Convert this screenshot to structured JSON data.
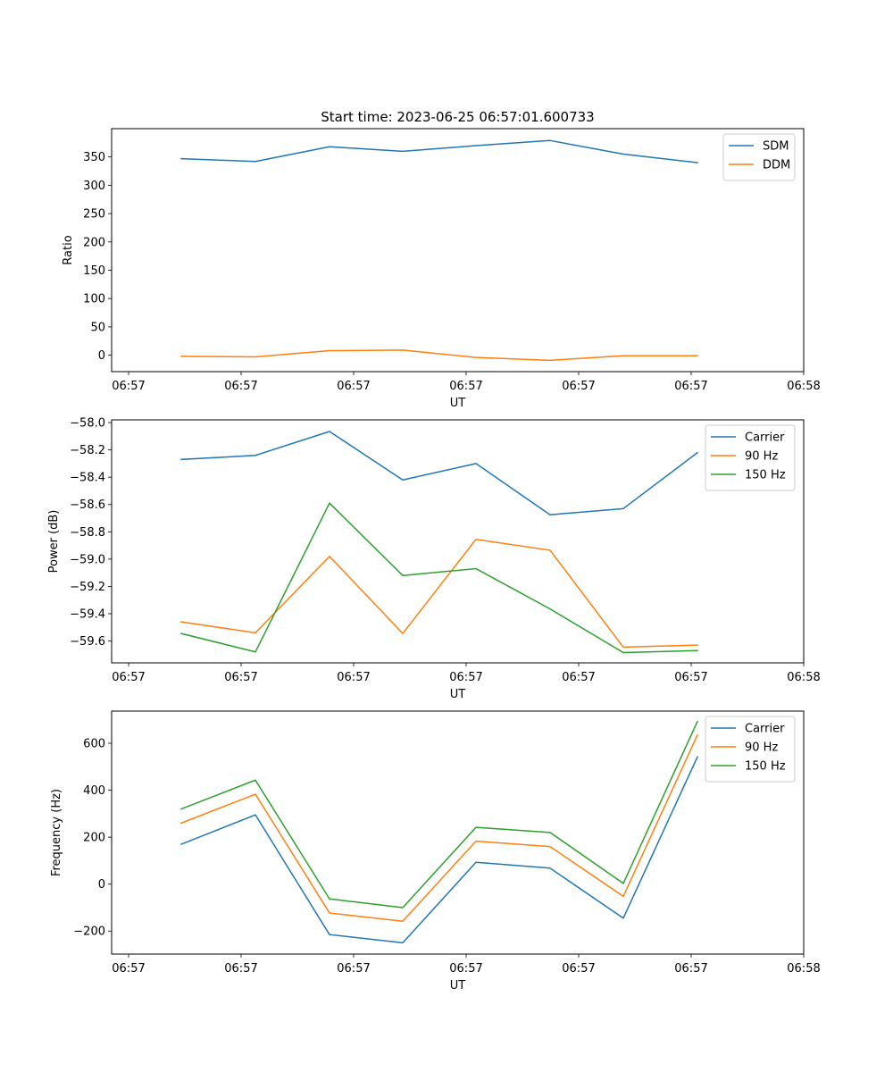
{
  "title": "Start time: 2023-06-25 06:57:01.600733",
  "chart_data": [
    {
      "type": "line",
      "xlabel": "UT",
      "ylabel": "Ratio",
      "x_ticks": [
        "06:57",
        "06:57",
        "06:57",
        "06:57",
        "06:57",
        "06:57",
        "06:58"
      ],
      "ylim": [
        -29,
        400
      ],
      "y_ticks": [
        0,
        50,
        100,
        150,
        200,
        250,
        300,
        350
      ],
      "legend_position": "top-right",
      "series": [
        {
          "name": "SDM",
          "color": "#1f77b4",
          "values": [
            347,
            342,
            368,
            360,
            370,
            379,
            355,
            340
          ]
        },
        {
          "name": "DDM",
          "color": "#ff7f0e",
          "values": [
            -2,
            -3,
            8,
            9,
            -4,
            -9,
            -1,
            -1
          ]
        }
      ]
    },
    {
      "type": "line",
      "xlabel": "UT",
      "ylabel": "Power (dB)",
      "x_ticks": [
        "06:57",
        "06:57",
        "06:57",
        "06:57",
        "06:57",
        "06:57",
        "06:58"
      ],
      "ylim": [
        -59.76,
        -57.98
      ],
      "y_ticks": [
        -59.6,
        -59.4,
        -59.2,
        -59.0,
        -58.8,
        -58.6,
        -58.4,
        -58.2,
        -58.0
      ],
      "legend_position": "top-right",
      "series": [
        {
          "name": "Carrier",
          "color": "#1f77b4",
          "values": [
            -58.27,
            -58.24,
            -58.065,
            -58.42,
            -58.3,
            -58.675,
            -58.63,
            -58.22
          ]
        },
        {
          "name": "90 Hz",
          "color": "#ff7f0e",
          "values": [
            -59.46,
            -59.54,
            -58.98,
            -59.545,
            -58.855,
            -58.935,
            -59.645,
            -59.63
          ]
        },
        {
          "name": "150 Hz",
          "color": "#2ca02c",
          "values": [
            -59.545,
            -59.68,
            -58.59,
            -59.12,
            -59.07,
            -59.365,
            -59.685,
            -59.67
          ]
        }
      ]
    },
    {
      "type": "line",
      "xlabel": "UT",
      "ylabel": "Frequency (Hz)",
      "x_ticks": [
        "06:57",
        "06:57",
        "06:57",
        "06:57",
        "06:57",
        "06:57",
        "06:58"
      ],
      "ylim": [
        -298,
        737
      ],
      "y_ticks": [
        -200,
        0,
        200,
        400,
        600
      ],
      "legend_position": "top-right",
      "series": [
        {
          "name": "Carrier",
          "color": "#1f77b4",
          "values": [
            170,
            295,
            -215,
            -250,
            93,
            68,
            -145,
            542
          ]
        },
        {
          "name": "90 Hz",
          "color": "#ff7f0e",
          "values": [
            260,
            383,
            -123,
            -158,
            183,
            160,
            -52,
            635
          ]
        },
        {
          "name": "150 Hz",
          "color": "#2ca02c",
          "values": [
            320,
            443,
            -63,
            -100,
            242,
            220,
            3,
            693
          ]
        }
      ]
    }
  ]
}
